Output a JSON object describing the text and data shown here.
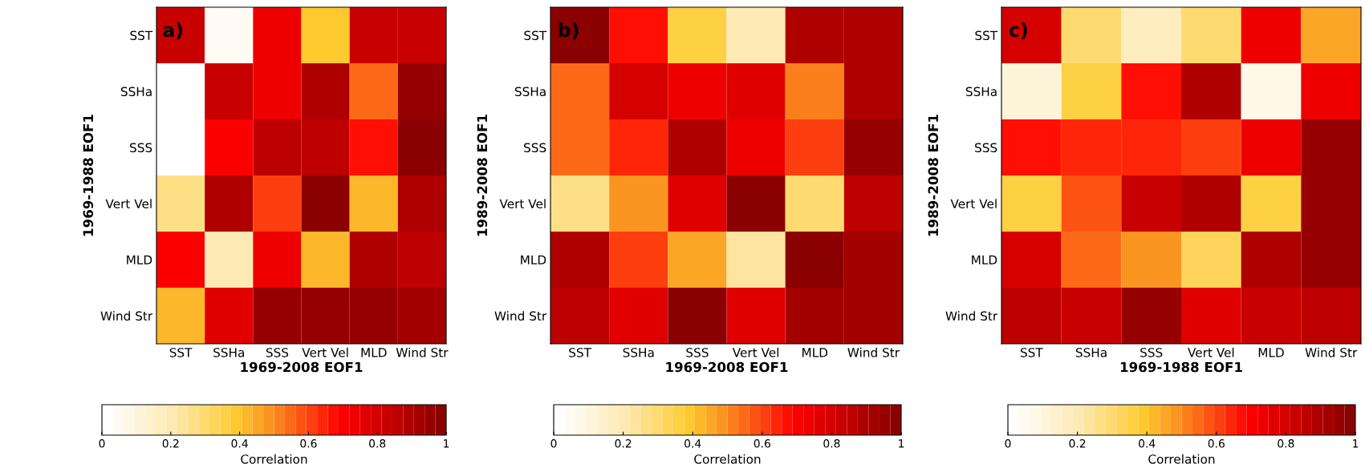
{
  "chart_data": [
    {
      "type": "heatmap",
      "annotations": [
        "a)"
      ],
      "xlabel": "1969-2008 EOF1",
      "ylabel": "1969-1988 EOF1",
      "clabel": "Correlation",
      "categories": [
        "SST",
        "SSHa",
        "SSS",
        "Vert Vel",
        "MLD",
        "Wind Str"
      ],
      "y_categories": [
        "SST",
        "SSHa",
        "SSS",
        "Vert Vel",
        "MLD",
        "Wind Str"
      ],
      "cells": [
        [
          0.82,
          0.05,
          0.72,
          0.38,
          0.82,
          0.82
        ],
        [
          0.0,
          0.82,
          0.72,
          0.88,
          0.55,
          0.95
        ],
        [
          0.03,
          0.7,
          0.85,
          0.85,
          0.68,
          0.97
        ],
        [
          0.25,
          0.88,
          0.62,
          1.0,
          0.42,
          0.88
        ],
        [
          0.7,
          0.2,
          0.72,
          0.42,
          0.9,
          0.85
        ],
        [
          0.42,
          0.78,
          0.95,
          0.95,
          0.95,
          0.92
        ]
      ],
      "clim": [
        0,
        1
      ],
      "cticks": [
        0,
        0.2,
        0.4,
        0.6,
        0.8,
        1
      ]
    },
    {
      "type": "heatmap",
      "annotations": [
        "b)"
      ],
      "xlabel": "1969-2008 EOF1",
      "ylabel": "1989-2008 EOF1",
      "clabel": "Correlation",
      "categories": [
        "SST",
        "SSHa",
        "SSS",
        "Vert Vel",
        "MLD",
        "Wind Str"
      ],
      "y_categories": [
        "SST",
        "SSHa",
        "SSS",
        "Vert Vel",
        "MLD",
        "Wind Str"
      ],
      "cells": [
        [
          0.98,
          0.68,
          0.35,
          0.2,
          0.9,
          0.88
        ],
        [
          0.55,
          0.8,
          0.73,
          0.78,
          0.5,
          0.9
        ],
        [
          0.55,
          0.63,
          0.9,
          0.73,
          0.62,
          0.95
        ],
        [
          0.28,
          0.48,
          0.78,
          0.98,
          0.3,
          0.87
        ],
        [
          0.88,
          0.62,
          0.45,
          0.22,
          0.97,
          0.93
        ],
        [
          0.85,
          0.77,
          0.97,
          0.78,
          0.92,
          0.93
        ]
      ],
      "clim": [
        0,
        1
      ],
      "cticks": [
        0,
        0.2,
        0.4,
        0.6,
        0.8,
        1
      ]
    },
    {
      "type": "heatmap",
      "annotations": [
        "c)"
      ],
      "xlabel": "1969-1988 EOF1",
      "ylabel": "1989-2008 EOF1",
      "clabel": "Correlation",
      "categories": [
        "SST",
        "SSHa",
        "SSS",
        "Vert Vel",
        "MLD",
        "Wind Str"
      ],
      "y_categories": [
        "SST",
        "SSHa",
        "SSS",
        "Vert Vel",
        "MLD",
        "Wind Str"
      ],
      "cells": [
        [
          0.8,
          0.3,
          0.18,
          0.3,
          0.72,
          0.45
        ],
        [
          0.1,
          0.35,
          0.68,
          0.88,
          0.08,
          0.72
        ],
        [
          0.68,
          0.63,
          0.63,
          0.6,
          0.73,
          0.95
        ],
        [
          0.37,
          0.58,
          0.82,
          0.9,
          0.37,
          0.95
        ],
        [
          0.8,
          0.55,
          0.47,
          0.32,
          0.88,
          0.95
        ],
        [
          0.85,
          0.83,
          0.95,
          0.77,
          0.83,
          0.85
        ]
      ],
      "clim": [
        0,
        1
      ],
      "cticks": [
        0,
        0.2,
        0.4,
        0.6,
        0.8,
        1
      ]
    }
  ]
}
